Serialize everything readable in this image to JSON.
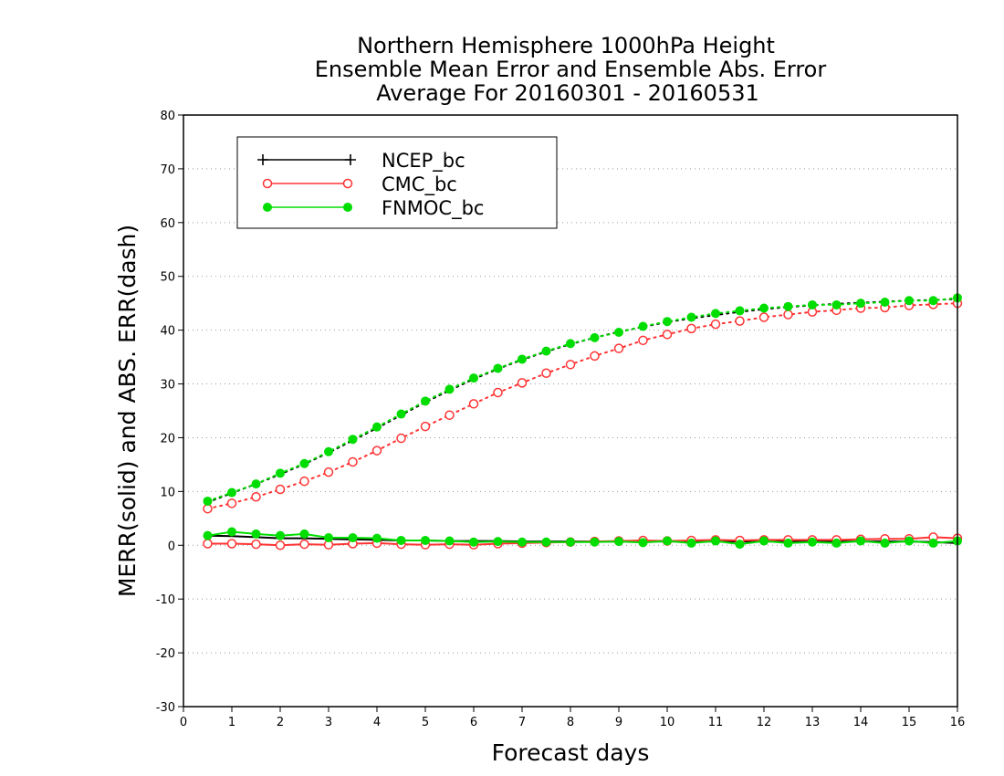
{
  "chart_data": {
    "type": "line",
    "title": [
      "Northern Hemisphere 1000hPa Height",
      "Ensemble Mean Error and Ensemble Abs. Error",
      "Average For 20160301 - 20160531"
    ],
    "xlabel": "Forecast days",
    "ylabel": "MERR(solid) and ABS. ERR(dash)",
    "xlim": [
      0,
      16
    ],
    "ylim": [
      -30,
      80
    ],
    "xticks": [
      "0",
      "1",
      "2",
      "3",
      "4",
      "5",
      "6",
      "7",
      "8",
      "9",
      "10",
      "11",
      "12",
      "13",
      "14",
      "15",
      "16"
    ],
    "yticks": [
      "-30",
      "-20",
      "-10",
      "0",
      "10",
      "20",
      "30",
      "40",
      "50",
      "60",
      "70",
      "80"
    ],
    "grid": "dotted horizontal",
    "legend": "upper-left",
    "x": [
      0.5,
      1,
      1.5,
      2,
      2.5,
      3,
      3.5,
      4,
      4.5,
      5,
      5.5,
      6,
      6.5,
      7,
      7.5,
      8,
      8.5,
      9,
      9.5,
      10,
      10.5,
      11,
      11.5,
      12,
      12.5,
      13,
      13.5,
      14,
      14.5,
      15,
      15.5,
      16
    ],
    "series": [
      {
        "name": "NCEP_bc",
        "color": "#000000",
        "marker": "plus",
        "merr": [
          1.8,
          1.7,
          1.5,
          1.3,
          1.3,
          1.2,
          1.1,
          1.0,
          0.9,
          0.9,
          0.8,
          0.8,
          0.8,
          0.7,
          0.7,
          0.7,
          0.7,
          0.7,
          0.7,
          0.7,
          0.7,
          0.7,
          0.7,
          0.7,
          0.7,
          0.7,
          0.7,
          0.7,
          0.7,
          0.7,
          0.6,
          0.4
        ],
        "abs_err": [
          8.0,
          9.7,
          11.4,
          13.2,
          15.1,
          17.2,
          19.5,
          21.8,
          24.2,
          26.6,
          28.8,
          30.9,
          32.8,
          34.5,
          36.0,
          37.4,
          38.6,
          39.7,
          40.6,
          41.5,
          42.2,
          42.8,
          43.4,
          43.9,
          44.3,
          44.6,
          44.9,
          45.1,
          45.3,
          45.5,
          45.6,
          45.8
        ]
      },
      {
        "name": "CMC_bc",
        "color": "#ff3333",
        "marker": "open-circle",
        "merr": [
          0.3,
          0.3,
          0.2,
          0.0,
          0.2,
          0.1,
          0.3,
          0.4,
          0.2,
          0.1,
          0.2,
          0.1,
          0.3,
          0.4,
          0.5,
          0.6,
          0.7,
          0.8,
          0.9,
          0.8,
          0.9,
          1.0,
          0.9,
          1.0,
          1.0,
          1.0,
          1.0,
          1.1,
          1.2,
          1.2,
          1.5,
          1.3
        ],
        "abs_err": [
          6.8,
          7.8,
          9.0,
          10.4,
          11.9,
          13.6,
          15.5,
          17.6,
          19.9,
          22.1,
          24.2,
          26.3,
          28.4,
          30.2,
          32.0,
          33.6,
          35.2,
          36.6,
          38.1,
          39.2,
          40.3,
          41.1,
          41.7,
          42.4,
          42.9,
          43.4,
          43.7,
          44.1,
          44.2,
          44.6,
          44.8,
          45.0
        ]
      },
      {
        "name": "FNMOC_bc",
        "color": "#00dd00",
        "marker": "filled-circle",
        "merr": [
          1.8,
          2.5,
          2.1,
          1.8,
          2.1,
          1.4,
          1.4,
          1.3,
          0.9,
          0.9,
          0.8,
          0.6,
          0.7,
          0.6,
          0.6,
          0.6,
          0.6,
          0.7,
          0.5,
          0.8,
          0.4,
          0.8,
          0.2,
          0.8,
          0.4,
          0.6,
          0.4,
          0.8,
          0.4,
          0.8,
          0.4,
          0.8
        ],
        "abs_err": [
          8.2,
          9.8,
          11.4,
          13.4,
          15.2,
          17.4,
          19.7,
          22.0,
          24.4,
          26.8,
          29.0,
          31.1,
          32.9,
          34.6,
          36.1,
          37.5,
          38.6,
          39.6,
          40.7,
          41.6,
          42.4,
          43.1,
          43.6,
          44.1,
          44.4,
          44.7,
          44.7,
          45.0,
          45.2,
          45.5,
          45.5,
          46.0
        ]
      }
    ]
  }
}
